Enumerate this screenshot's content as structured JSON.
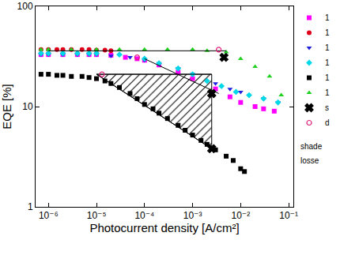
{
  "chart_data": {
    "type": "scatter",
    "xlabel": "Photocurrent density [A/cm²]",
    "ylabel": "EQE [%]",
    "log": true,
    "grid": false,
    "legend": "right",
    "xlim": [
      5.4e-07,
      0.125
    ],
    "ylim": [
      1,
      100
    ],
    "xticks": [
      {
        "value": 1e-06,
        "label": "10⁻⁶"
      },
      {
        "value": 1e-05,
        "label": "10⁻⁵"
      },
      {
        "value": 0.0001,
        "label": "10⁻⁴"
      },
      {
        "value": 0.001,
        "label": "10⁻³"
      },
      {
        "value": 0.01,
        "label": "10⁻²"
      },
      {
        "value": 0.1,
        "label": "10⁻¹"
      }
    ],
    "yticks": [
      1,
      10,
      100
    ],
    "annotations": [
      "shade",
      "losse"
    ],
    "shaded_region": {
      "x": [
        1e-05,
        0.0025,
        0.0025,
        1e-05
      ],
      "y": [
        21,
        21,
        3.8,
        21
      ],
      "color": "#000000"
    },
    "series": [
      {
        "name": "1",
        "type": "scatter",
        "marker": "square",
        "color": "#ff00ff",
        "x": [
          7e-07,
          1e-06,
          2e-06,
          4e-06,
          7e-06,
          1e-05,
          2e-05,
          4e-05,
          7e-05,
          0.0001,
          0.0002,
          0.0005,
          0.001,
          0.003,
          0.006,
          0.01,
          0.02,
          0.03,
          0.05
        ],
        "values": [
          33,
          33,
          33,
          33,
          33,
          33,
          32.5,
          31,
          30,
          29,
          26,
          22,
          19,
          15,
          12.5,
          11,
          10,
          9.5,
          9
        ]
      },
      {
        "name": "1",
        "type": "scatter",
        "marker": "circle",
        "color": "#e0001a",
        "x": [
          7e-07,
          1e-06,
          1.5e-06,
          2e-06,
          3e-06,
          5e-06,
          7e-06,
          1e-05,
          1.5e-05,
          2e-05
        ],
        "values": [
          37,
          37,
          37,
          37,
          37,
          37,
          37,
          36.5,
          36.5,
          36
        ]
      },
      {
        "name": "1",
        "type": "scatter",
        "marker": "triangle-down",
        "color": "#1f1fe0",
        "x": [
          7e-07,
          1e-06,
          2e-06,
          4e-06,
          7e-06,
          1e-05,
          2e-05,
          5e-05,
          0.0001,
          0.0002,
          0.0005,
          0.001,
          0.003,
          0.006,
          0.01,
          0.03,
          0.06
        ],
        "values": [
          33,
          33,
          33,
          33,
          33,
          33,
          32,
          31,
          29,
          27,
          24,
          21,
          17,
          15,
          14,
          12,
          11
        ]
      },
      {
        "name": "1",
        "type": "scatter",
        "marker": "diamond",
        "color": "#00d8e8",
        "x": [
          7e-07,
          1e-06,
          2e-06,
          4e-06,
          7e-06,
          1e-05,
          3e-05,
          0.0001,
          0.0002,
          0.0005,
          0.001,
          0.002,
          0.004,
          0.008,
          0.015,
          0.03,
          0.06
        ],
        "values": [
          34,
          34,
          34,
          34,
          34,
          34,
          33,
          30,
          27,
          24,
          21,
          18,
          16,
          14,
          13,
          12,
          11
        ]
      },
      {
        "name": "1",
        "type": "scatter",
        "marker": "square",
        "color": "#000000",
        "x": [
          7e-07,
          1e-06,
          1.5e-06,
          2e-06,
          3e-06,
          5e-06,
          7e-06,
          1e-05,
          1.5e-05,
          2e-05,
          3e-05,
          5e-05,
          7e-05,
          0.0001,
          0.00015,
          0.0002,
          0.0003,
          0.0005,
          0.0007,
          0.001,
          0.0015,
          0.002,
          0.003,
          0.005,
          0.007,
          0.01,
          0.012
        ],
        "values": [
          21,
          21,
          20.5,
          20.5,
          20,
          20,
          19.5,
          19,
          18,
          17,
          15.5,
          13.5,
          12,
          10.5,
          9.5,
          8.6,
          7.6,
          6.5,
          5.8,
          5.2,
          4.6,
          4.2,
          3.7,
          3.2,
          2.9,
          2.4,
          2.25
        ]
      },
      {
        "name": "1",
        "type": "scatter",
        "marker": "triangle-up",
        "color": "#20d020",
        "x": [
          7e-07,
          1e-06,
          3e-06,
          1e-05,
          3e-05,
          0.0001,
          0.0003,
          0.001,
          0.002,
          0.005,
          0.01,
          0.02,
          0.04,
          0.07
        ],
        "values": [
          37,
          37,
          37,
          37,
          37,
          37,
          37,
          37,
          36,
          35,
          30,
          25,
          20,
          13
        ]
      },
      {
        "type": "line",
        "line_style": "solid",
        "color": "#000000",
        "x": [
          1e-05,
          0.0025
        ],
        "values": [
          21,
          21
        ]
      },
      {
        "type": "line",
        "line_style": "solid",
        "color": "#000000",
        "x": [
          1e-05,
          0.0025
        ],
        "values": [
          21,
          3.8
        ]
      },
      {
        "type": "line",
        "line_style": "solid",
        "color": "#000000",
        "x": [
          1e-06,
          0.005
        ],
        "values": [
          36,
          36
        ]
      },
      {
        "type": "line",
        "line_style": "solid",
        "color": "#000000",
        "x": [
          0.0001,
          0.0035
        ],
        "values": [
          30,
          13.5
        ]
      },
      {
        "name": "s",
        "type": "scatter",
        "marker": "x",
        "color": "#000000",
        "x": [
          0.0025,
          0.0025,
          0.0045
        ],
        "values": [
          3.8,
          13.5,
          31
        ]
      },
      {
        "name": "d",
        "type": "scatter",
        "marker": "circle-open",
        "color": "#e0207a",
        "x": [
          1.3e-05,
          7e-05,
          0.0035
        ],
        "values": [
          21,
          31,
          37
        ]
      }
    ]
  }
}
